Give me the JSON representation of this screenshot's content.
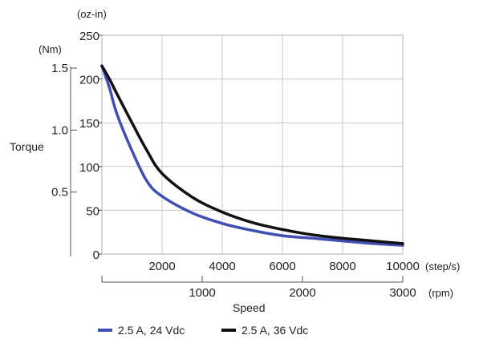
{
  "chart_data": {
    "type": "line",
    "xlabel": "Speed",
    "ylabel": "Torque",
    "x_unit_primary": "(step/s)",
    "x_unit_secondary": "(rpm)",
    "y_unit_primary": "(oz-in)",
    "y_unit_secondary": "(Nm)",
    "xlim": [
      0,
      10000
    ],
    "ylim": [
      0,
      250
    ],
    "x_ticks": [
      "2000",
      "4000",
      "6000",
      "8000",
      "10000"
    ],
    "x_tick_values": [
      2000,
      4000,
      6000,
      8000,
      10000
    ],
    "x2_ticks": [
      "1000",
      "2000",
      "3000"
    ],
    "x2_tick_values": [
      1000,
      2000,
      3000
    ],
    "x2_lim": [
      0,
      3000
    ],
    "y_ticks": [
      "0",
      "50",
      "100",
      "150",
      "200",
      "250"
    ],
    "y_tick_values": [
      0,
      50,
      100,
      150,
      200,
      250
    ],
    "y2_ticks": [
      "0.5",
      "1.0",
      "1.5"
    ],
    "y2_tick_values": [
      0.5,
      1.0,
      1.5
    ],
    "y2_lim": [
      0,
      1.765
    ],
    "grid": true,
    "legend_position": "bottom",
    "series": [
      {
        "name": "2.5 A, 24 Vdc",
        "color": "#3f4fb5",
        "x": [
          0,
          250,
          500,
          1000,
          1500,
          2000,
          3000,
          4000,
          5000,
          6000,
          7000,
          8000,
          9000,
          10000
        ],
        "y": [
          215,
          190,
          160,
          118,
          83,
          66,
          47,
          35,
          27,
          21,
          18,
          15,
          12,
          10
        ]
      },
      {
        "name": "2.5 A, 36 Vdc",
        "color": "#111111",
        "x": [
          0,
          250,
          500,
          1000,
          1500,
          2000,
          3000,
          4000,
          5000,
          6000,
          7000,
          8000,
          9000,
          10000
        ],
        "y": [
          215,
          200,
          183,
          150,
          118,
          92,
          65,
          48,
          36,
          28,
          22,
          18,
          15,
          12
        ]
      }
    ]
  }
}
